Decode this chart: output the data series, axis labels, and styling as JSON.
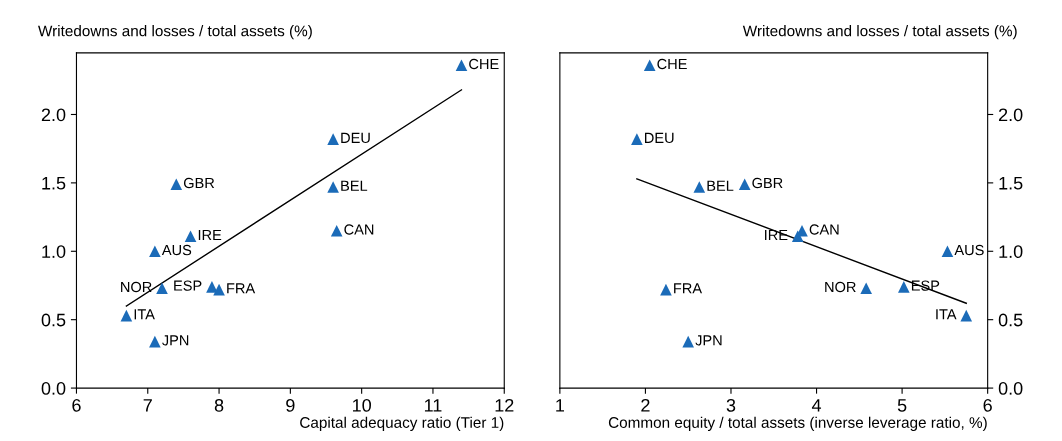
{
  "chart_data": [
    {
      "type": "scatter",
      "ylabel": "Writedowns and losses / total assets (%)",
      "xlabel": "Capital adequacy ratio (Tier 1)",
      "xlim": [
        6,
        12
      ],
      "xticks": [
        6,
        7,
        8,
        9,
        10,
        11,
        12
      ],
      "ylim": [
        0,
        2.45
      ],
      "yticks": [
        {
          "value": 0,
          "label": "0.0"
        },
        {
          "value": 0.5,
          "label": "0.5"
        },
        {
          "value": 1,
          "label": "1.0"
        },
        {
          "value": 1.5,
          "label": "1.5"
        },
        {
          "value": 2,
          "label": "2.0"
        }
      ],
      "grid": false,
      "legend": false,
      "series": [
        {
          "marker": "triangle",
          "color": "#1b6bb8",
          "x": [
            11.4,
            9.6,
            7.4,
            9.6,
            7.6,
            9.65,
            7.1,
            7.2,
            7.9,
            8.0,
            6.7,
            7.1
          ],
          "values": [
            2.36,
            1.82,
            1.49,
            1.47,
            1.11,
            1.15,
            1.0,
            0.73,
            0.74,
            0.72,
            0.53,
            0.34
          ]
        },
        {
          "type": "line",
          "color": "#000000",
          "x": [
            6.7,
            11.4
          ],
          "values": [
            0.6,
            2.18
          ]
        }
      ],
      "annotations": [
        {
          "text": "CHE",
          "x": 11.4,
          "y": 2.36
        },
        {
          "text": "DEU",
          "x": 9.6,
          "y": 1.82
        },
        {
          "text": "GBR",
          "x": 7.4,
          "y": 1.49
        },
        {
          "text": "BEL",
          "x": 9.6,
          "y": 1.47
        },
        {
          "text": "IRE",
          "x": 7.6,
          "y": 1.11
        },
        {
          "text": "CAN",
          "x": 9.65,
          "y": 1.15
        },
        {
          "text": "AUS",
          "x": 7.1,
          "y": 1.0
        },
        {
          "text": "NOR",
          "x": 7.2,
          "y": 0.73
        },
        {
          "text": "ESP",
          "x": 7.9,
          "y": 0.74
        },
        {
          "text": "FRA",
          "x": 8.0,
          "y": 0.72
        },
        {
          "text": "ITA",
          "x": 6.7,
          "y": 0.53
        },
        {
          "text": "JPN",
          "x": 7.1,
          "y": 0.34
        }
      ]
    },
    {
      "type": "scatter",
      "ylabel": "Writedowns and losses / total assets (%)",
      "xlabel": "Common equity / total assets (inverse leverage ratio, %)",
      "xlim": [
        1,
        6
      ],
      "xticks": [
        1,
        2,
        3,
        4,
        5,
        6
      ],
      "ylim": [
        0,
        2.45
      ],
      "yticks": [
        {
          "value": 0,
          "label": "0.0"
        },
        {
          "value": 0.5,
          "label": "0.5"
        },
        {
          "value": 1,
          "label": "1.0"
        },
        {
          "value": 1.5,
          "label": "1.5"
        },
        {
          "value": 2,
          "label": "2.0"
        }
      ],
      "grid": false,
      "legend": false,
      "series": [
        {
          "marker": "triangle",
          "color": "#1b6bb8",
          "x": [
            2.05,
            1.9,
            3.16,
            2.63,
            3.78,
            3.83,
            5.53,
            4.58,
            5.02,
            2.24,
            5.75,
            2.5
          ],
          "values": [
            2.36,
            1.82,
            1.49,
            1.47,
            1.11,
            1.15,
            1.0,
            0.73,
            0.74,
            0.72,
            0.53,
            0.34
          ]
        },
        {
          "type": "line",
          "color": "#000000",
          "x": [
            1.9,
            5.75
          ],
          "values": [
            1.53,
            0.62
          ]
        }
      ],
      "annotations": [
        {
          "text": "CHE",
          "x": 2.05,
          "y": 2.36
        },
        {
          "text": "DEU",
          "x": 1.9,
          "y": 1.82
        },
        {
          "text": "GBR",
          "x": 3.16,
          "y": 1.49
        },
        {
          "text": "BEL",
          "x": 2.63,
          "y": 1.47
        },
        {
          "text": "IRE",
          "x": 3.78,
          "y": 1.11
        },
        {
          "text": "CAN",
          "x": 3.83,
          "y": 1.15
        },
        {
          "text": "AUS",
          "x": 5.53,
          "y": 1.0
        },
        {
          "text": "NOR",
          "x": 4.58,
          "y": 0.73
        },
        {
          "text": "ESP",
          "x": 5.02,
          "y": 0.74
        },
        {
          "text": "FRA",
          "x": 2.24,
          "y": 0.72
        },
        {
          "text": "ITA",
          "x": 5.75,
          "y": 0.53
        },
        {
          "text": "JPN",
          "x": 2.5,
          "y": 0.34
        }
      ]
    }
  ]
}
